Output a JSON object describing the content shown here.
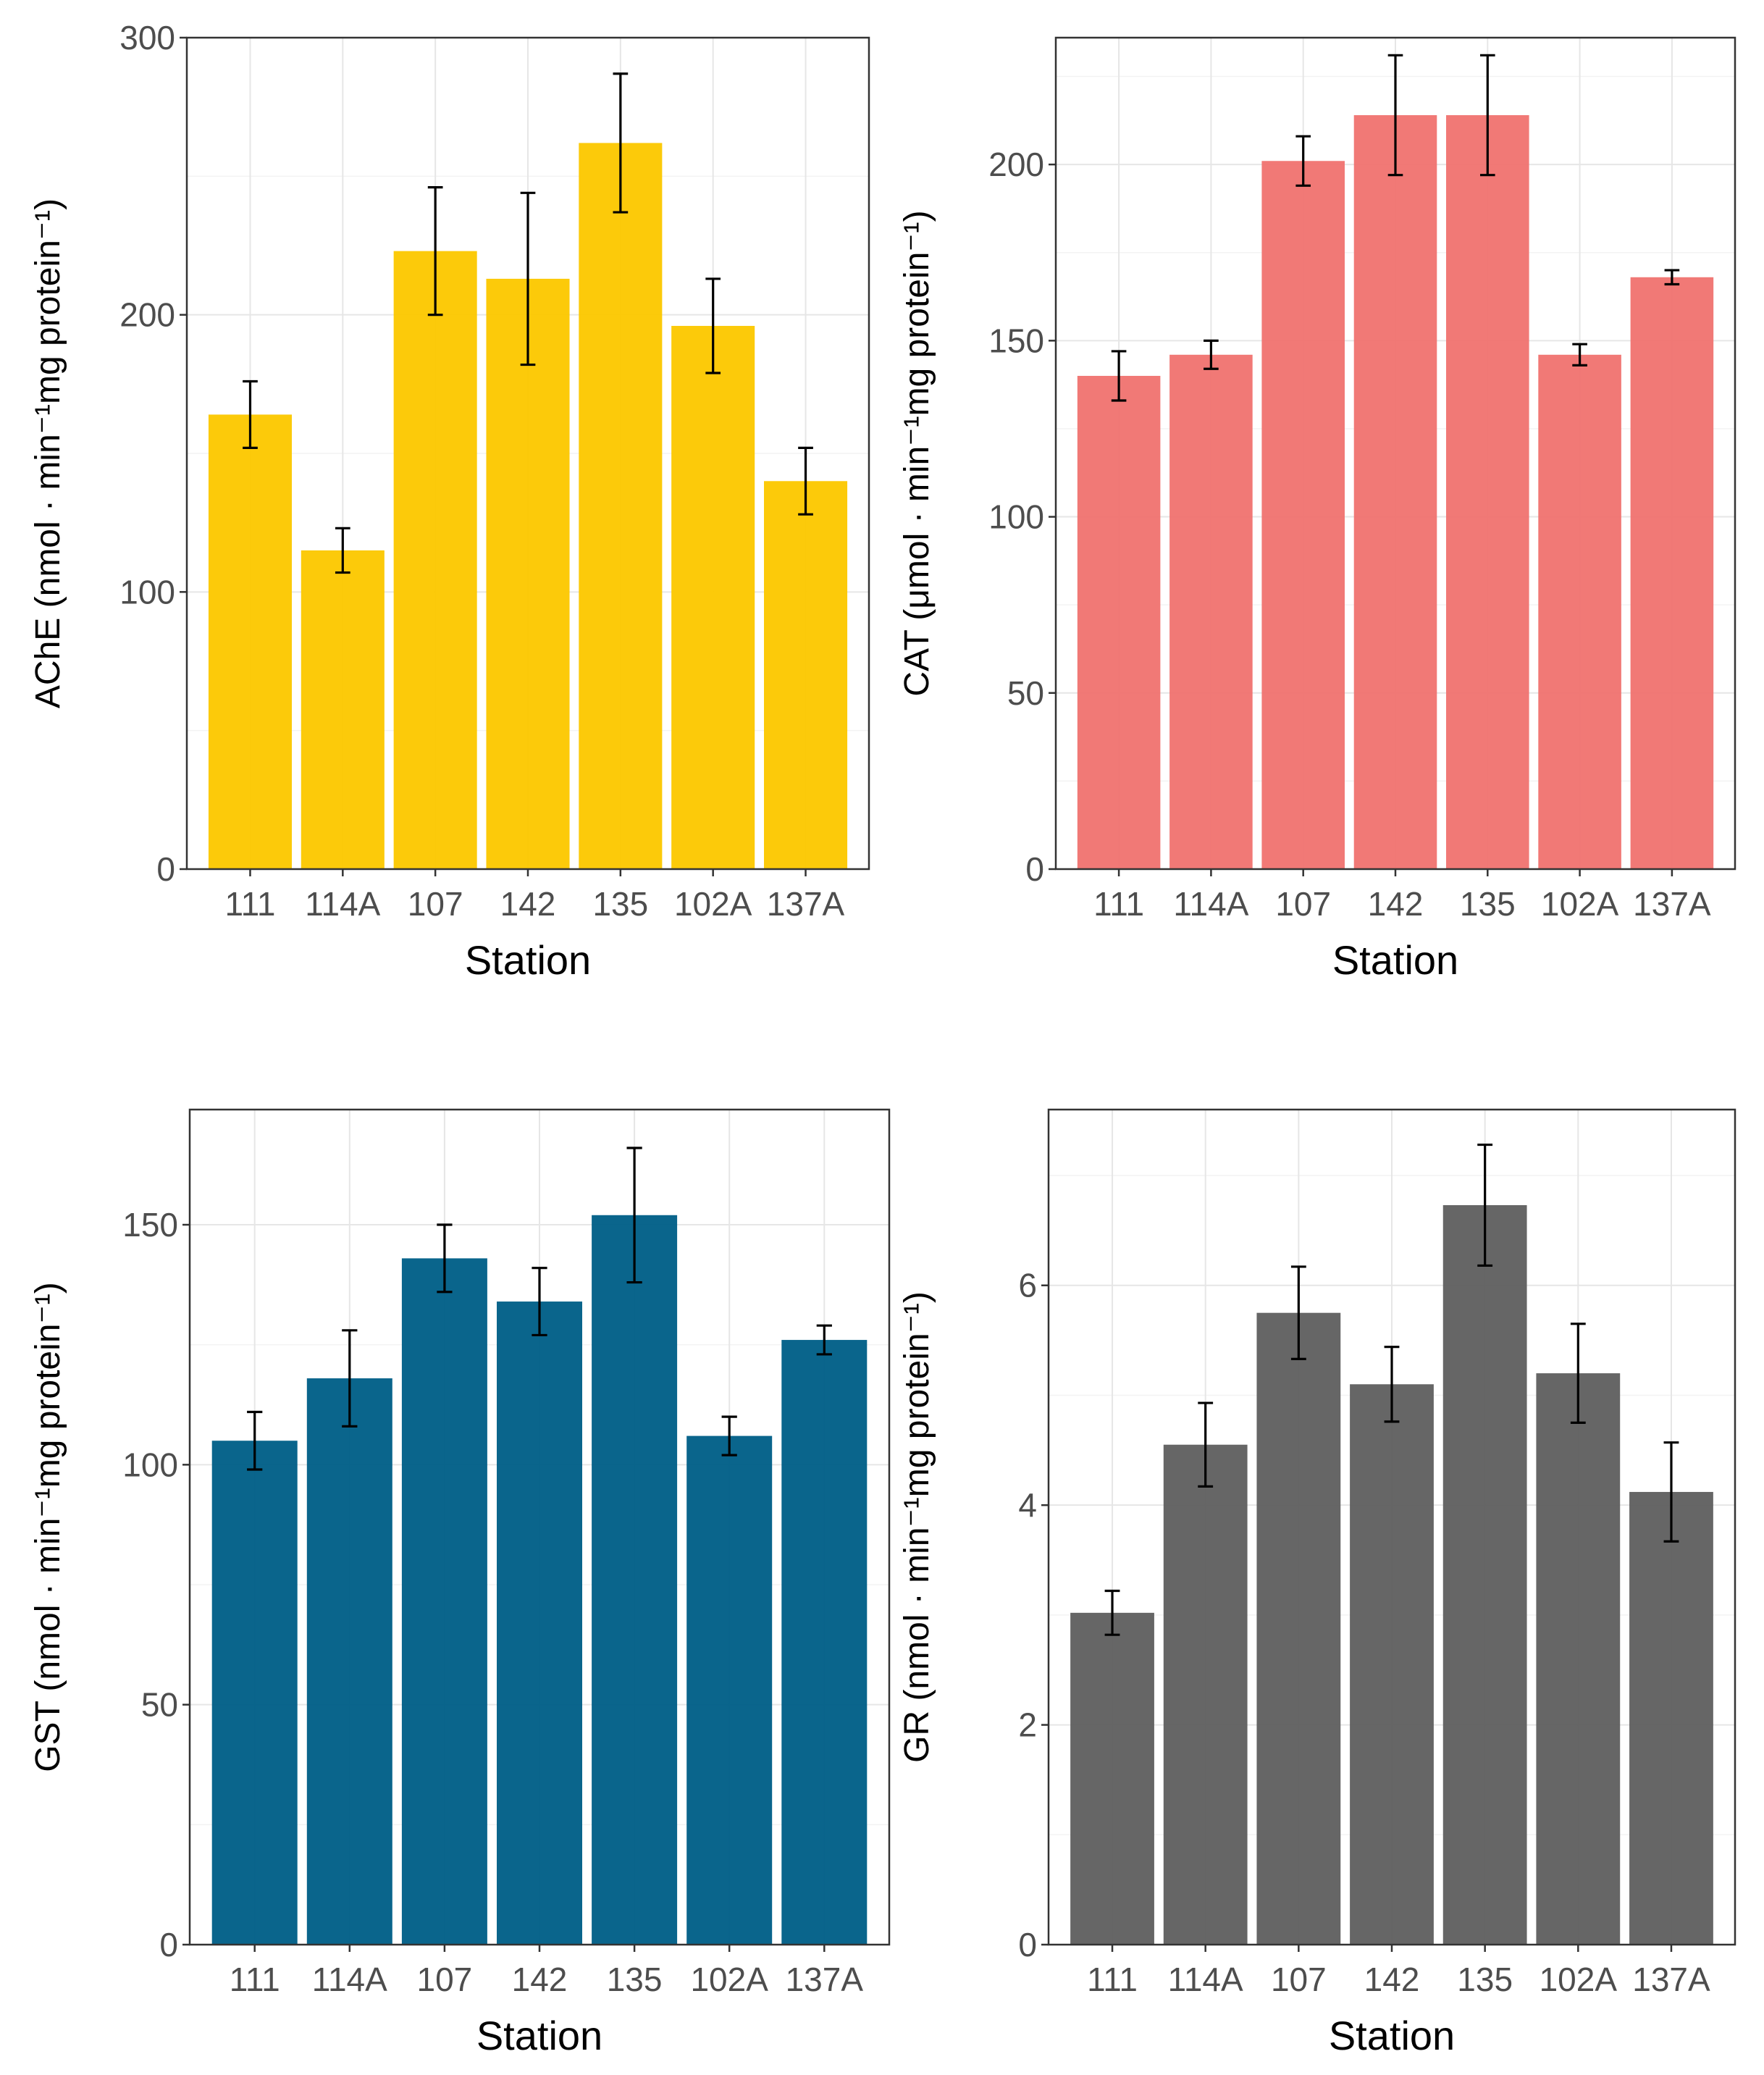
{
  "chart_data": [
    {
      "type": "bar",
      "ylabel": "AChE (nmol · min⁻¹mg protein⁻¹)",
      "xlabel": "Station",
      "categories": [
        "111",
        "114A",
        "107",
        "142",
        "135",
        "102A",
        "137A"
      ],
      "values": [
        164,
        115,
        223,
        213,
        262,
        196,
        140
      ],
      "errors": [
        12,
        8,
        23,
        31,
        25,
        17,
        12
      ],
      "ylim": [
        0,
        300
      ],
      "yticks": [
        0,
        100,
        200,
        300
      ],
      "color": "#FCC800"
    },
    {
      "type": "bar",
      "ylabel": "CAT (μmol · min⁻¹mg protein⁻¹)",
      "xlabel": "Station",
      "categories": [
        "111",
        "114A",
        "107",
        "142",
        "135",
        "102A",
        "137A"
      ],
      "values": [
        140,
        146,
        201,
        214,
        214,
        146,
        168
      ],
      "errors": [
        7,
        4,
        7,
        17,
        17,
        3,
        2
      ],
      "ylim": [
        0,
        236
      ],
      "yticks": [
        0,
        50,
        100,
        150,
        200
      ],
      "color": "#F07470"
    },
    {
      "type": "bar",
      "ylabel": "GST (nmol · min⁻¹mg protein⁻¹)",
      "xlabel": "Station",
      "categories": [
        "111",
        "114A",
        "107",
        "142",
        "135",
        "102A",
        "137A"
      ],
      "values": [
        105,
        118,
        143,
        134,
        152,
        106,
        126
      ],
      "errors": [
        6,
        10,
        7,
        7,
        14,
        4,
        3
      ],
      "ylim": [
        0,
        174
      ],
      "yticks": [
        0,
        50,
        100,
        150
      ],
      "color": "#005F87"
    },
    {
      "type": "bar",
      "ylabel": "GR (nmol · min⁻¹mg protein⁻¹)",
      "xlabel": "Station",
      "categories": [
        "111",
        "114A",
        "107",
        "142",
        "135",
        "102A",
        "137A"
      ],
      "values": [
        3.02,
        4.55,
        5.75,
        5.1,
        6.73,
        5.2,
        4.12
      ],
      "errors": [
        0.2,
        0.38,
        0.42,
        0.34,
        0.55,
        0.45,
        0.45
      ],
      "ylim": [
        0,
        7.6
      ],
      "yticks": [
        0,
        2,
        4,
        6
      ],
      "color": "#606060"
    }
  ]
}
